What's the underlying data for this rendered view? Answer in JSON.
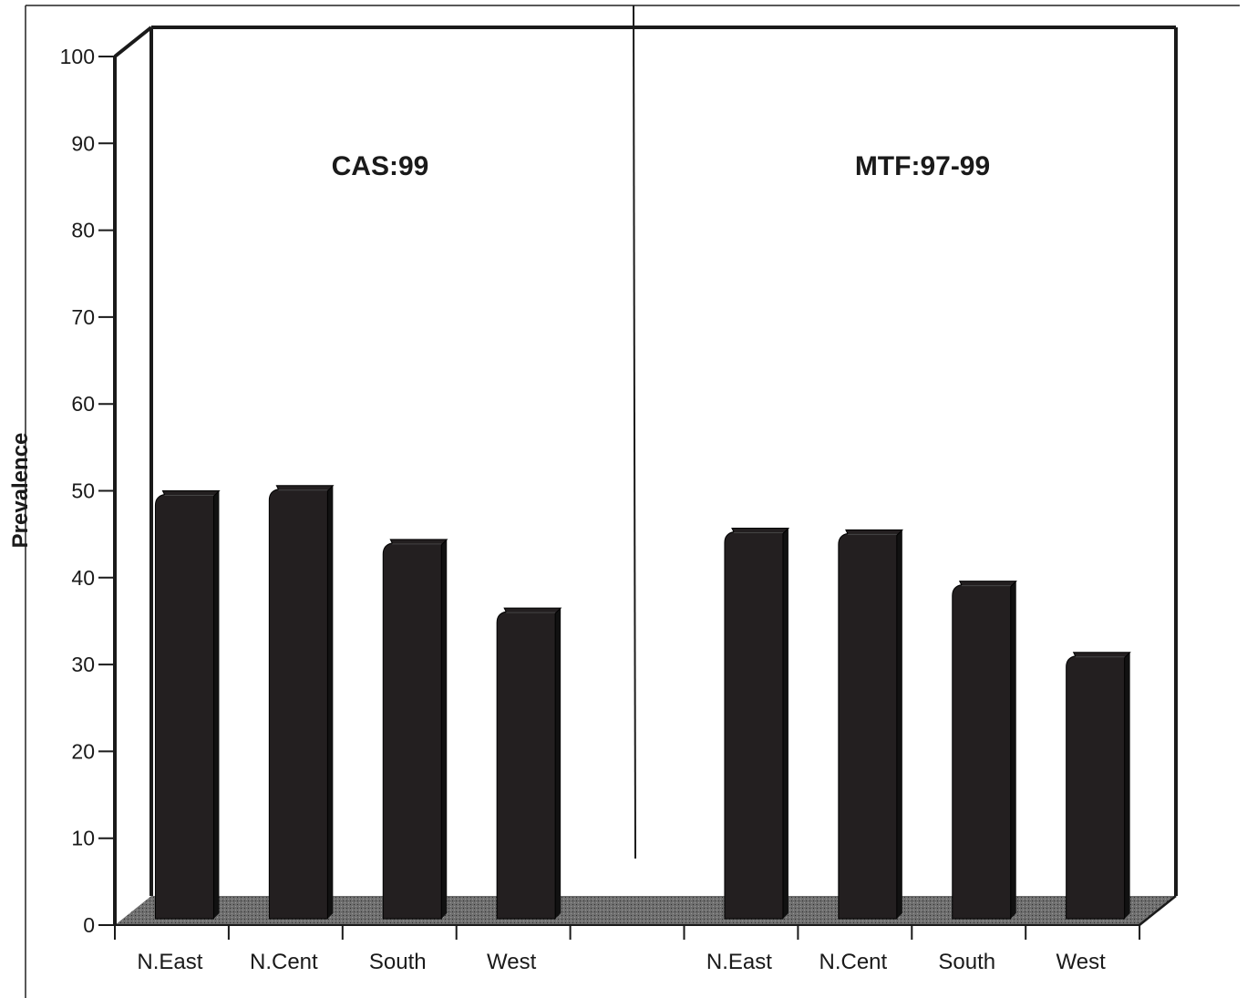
{
  "chart_data": {
    "type": "bar",
    "ylabel": "Prevalence",
    "ylim": [
      0,
      100
    ],
    "yticks": [
      "0",
      "10",
      "20",
      "30",
      "40",
      "50",
      "60",
      "70",
      "80",
      "90",
      "100"
    ],
    "grid": false,
    "style": "3d",
    "bar_color": "#231f20",
    "panels": [
      {
        "label": "CAS:99",
        "categories": [
          "N.East",
          "N.Cent",
          "South",
          "West"
        ],
        "values": [
          50,
          50.6,
          44.4,
          36.5
        ]
      },
      {
        "label": "MTF:97-99",
        "categories": [
          "N.East",
          "N.Cent",
          "South",
          "West"
        ],
        "values": [
          45.7,
          45.5,
          39.6,
          31.4
        ]
      }
    ]
  }
}
